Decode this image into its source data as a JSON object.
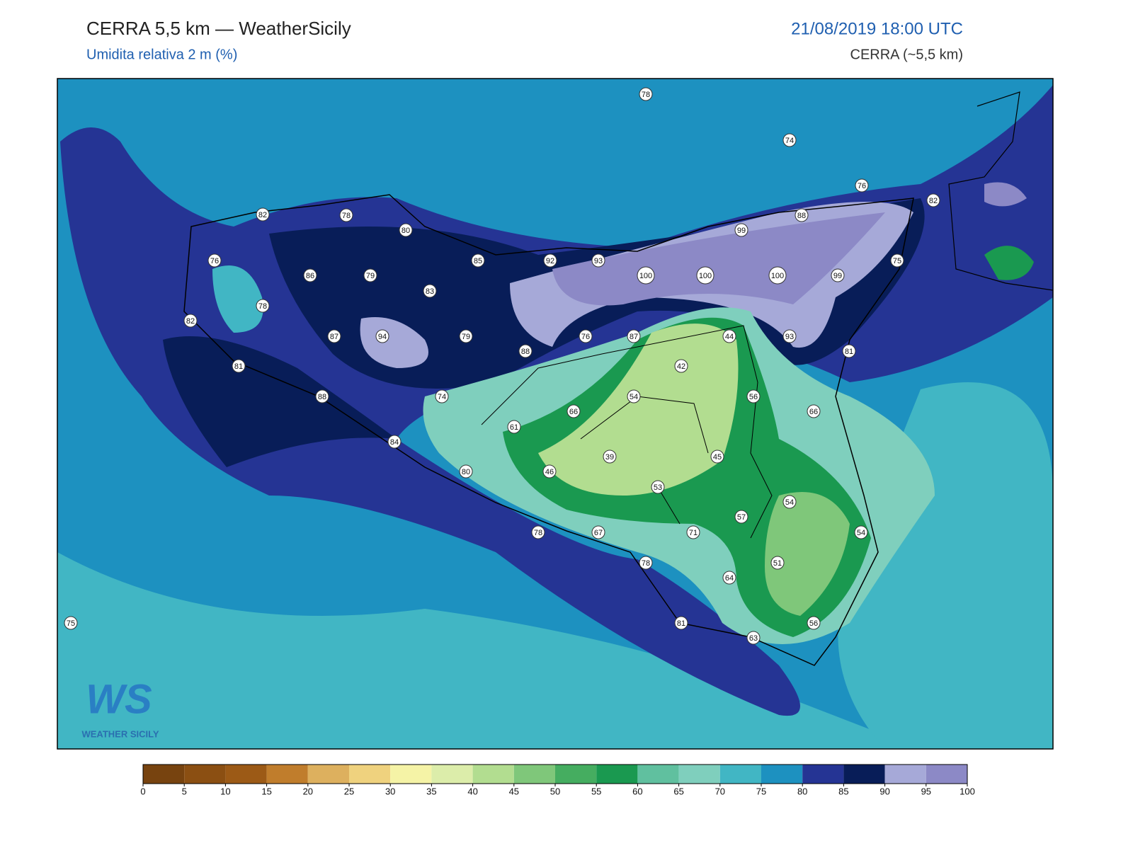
{
  "header": {
    "title": "CERRA 5,5 km — WeatherSicily",
    "subtitle": "Umidita relativa 2 m (%)",
    "datetime": "21/08/2019 18:00 UTC",
    "model": "CERRA (~5,5 km)"
  },
  "stations": [
    78,
    74,
    76,
    82,
    82,
    78,
    80,
    88,
    99,
    76,
    85,
    92,
    93,
    100,
    100,
    100,
    99,
    75,
    86,
    79,
    83,
    78,
    82,
    87,
    94,
    79,
    76,
    87,
    44,
    93,
    81,
    88,
    81,
    42,
    54,
    56,
    74,
    88,
    66,
    66,
    61,
    84,
    39,
    45,
    46,
    80,
    53,
    54,
    57,
    78,
    67,
    71,
    54,
    78,
    51,
    64,
    81,
    56,
    63,
    75
  ],
  "colorbar": {
    "ticks": [
      0,
      5,
      10,
      15,
      20,
      25,
      30,
      35,
      40,
      45,
      50,
      55,
      60,
      65,
      70,
      75,
      80,
      85,
      90,
      95,
      100
    ],
    "colors": [
      "#77430f",
      "#8b4f12",
      "#9c5a16",
      "#c07d2c",
      "#ddb05e",
      "#efd27e",
      "#f5f3a6",
      "#dcedaa",
      "#b2dd90",
      "#7fc77a",
      "#45ad60",
      "#1a9950",
      "#60c09f",
      "#7fcfbd",
      "#41b6c4",
      "#1d91c0",
      "#253494",
      "#081d58",
      "#a6a9d8",
      "#8c89c6"
    ]
  },
  "logo": {
    "mark": "WS",
    "name": "WEATHER SICILY"
  }
}
